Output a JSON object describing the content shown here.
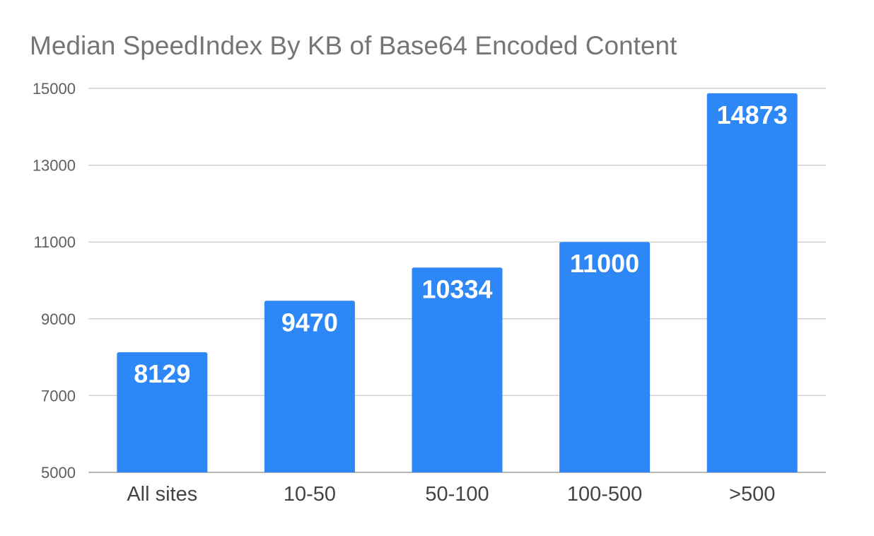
{
  "chart_data": {
    "type": "bar",
    "title": "Median SpeedIndex By KB of Base64 Encoded Content",
    "xlabel": "",
    "ylabel": "",
    "categories": [
      "All sites",
      "10-50",
      "50-100",
      "100-500",
      ">500"
    ],
    "values": [
      8129,
      9470,
      10334,
      11000,
      14873
    ],
    "data_labels": [
      "8129",
      "9470",
      "10334",
      "11000",
      "14873"
    ],
    "ylim": [
      5000,
      15000
    ],
    "yticks": [
      5000,
      7000,
      9000,
      11000,
      13000,
      15000
    ],
    "ytick_labels": [
      "5000",
      "7000",
      "9000",
      "11000",
      "13000",
      "15000"
    ],
    "grid": true,
    "legend": "none",
    "colors": {
      "bar": "#2d87f7",
      "title": "#757575",
      "grid": "#d0d0d0"
    }
  }
}
